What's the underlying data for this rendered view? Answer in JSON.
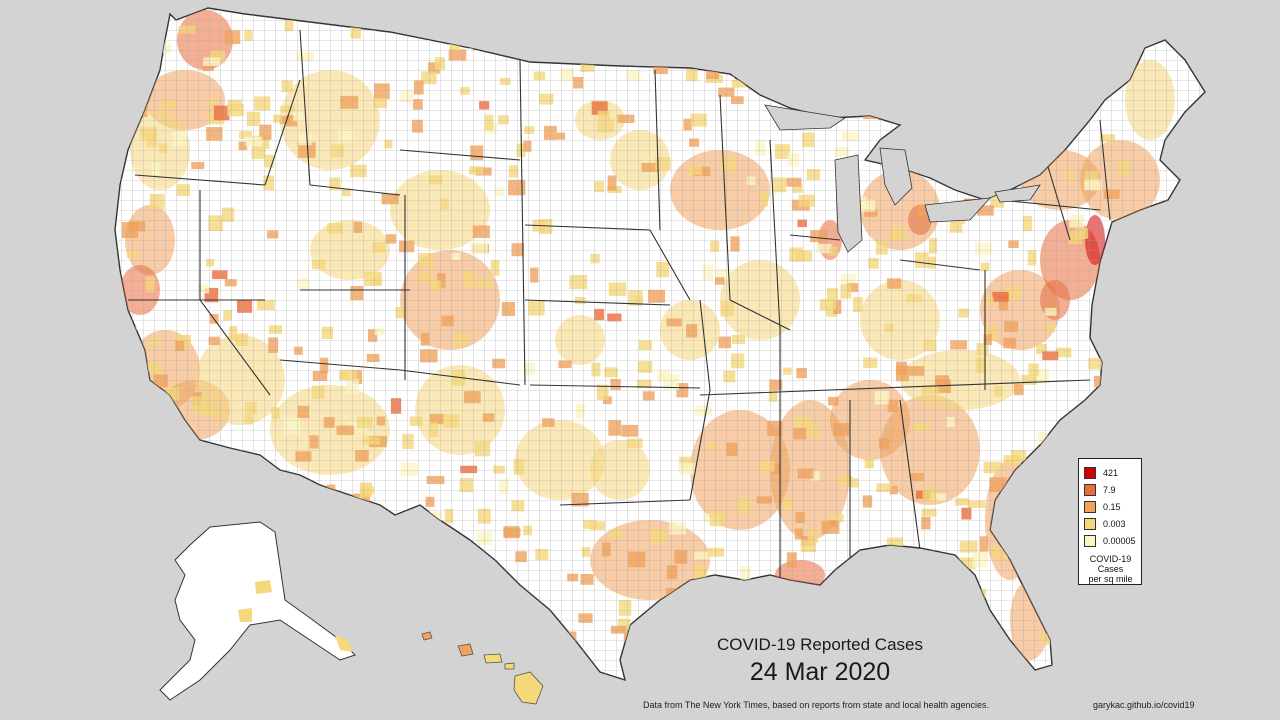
{
  "map": {
    "title": "COVID-19 Reported Cases",
    "date": "24 Mar 2020",
    "source_note": "Data from The New York Times, based on reports from state and local health agencies.",
    "credit": "garykac.github.io/covid19"
  },
  "legend": {
    "items": [
      {
        "label": "421",
        "color": "#d40000"
      },
      {
        "label": "7.9",
        "color": "#ea6b3c"
      },
      {
        "label": "0.15",
        "color": "#f0a35c"
      },
      {
        "label": "0.003",
        "color": "#f5d77c"
      },
      {
        "label": "0.00005",
        "color": "#fbf5c4"
      }
    ],
    "title_lines": [
      "COVID-19",
      "Cases",
      "per sq mile"
    ]
  },
  "colors": {
    "background": "#d3d3d3",
    "land": "#ffffff",
    "county_border": "#9a9a9a",
    "state_border": "#333333"
  }
}
